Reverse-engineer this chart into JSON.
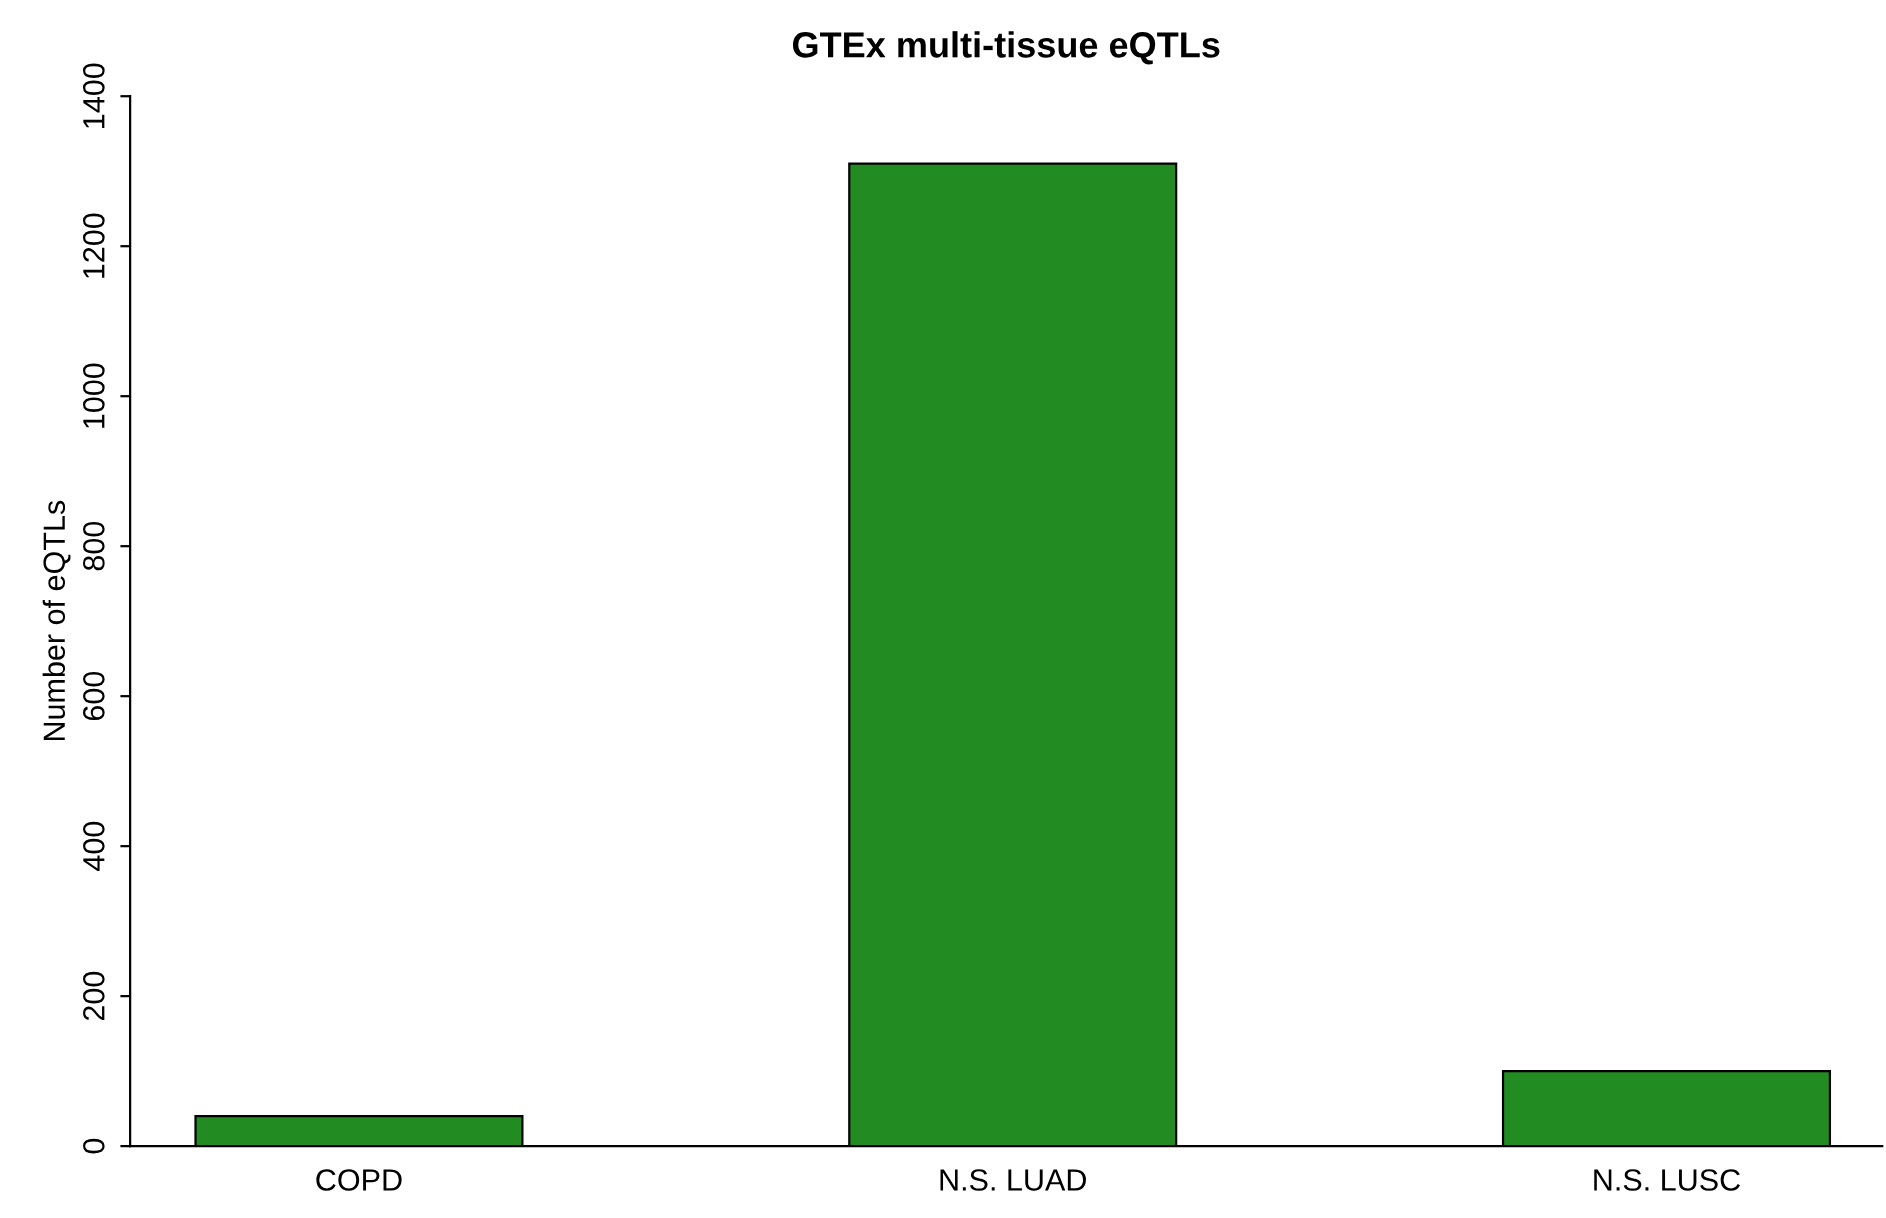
{
  "chart_data": {
    "type": "bar",
    "title": "GTEx multi-tissue eQTLs",
    "ylabel": "Number of eQTLs",
    "categories": [
      "COPD",
      "N.S. LUAD",
      "N.S. LUSC"
    ],
    "values": [
      40,
      1310,
      100
    ],
    "color": "#228b22",
    "ylim": [
      0,
      1400
    ],
    "yticks": [
      0,
      200,
      400,
      600,
      800,
      1000,
      1200,
      1400
    ],
    "grid": false
  }
}
